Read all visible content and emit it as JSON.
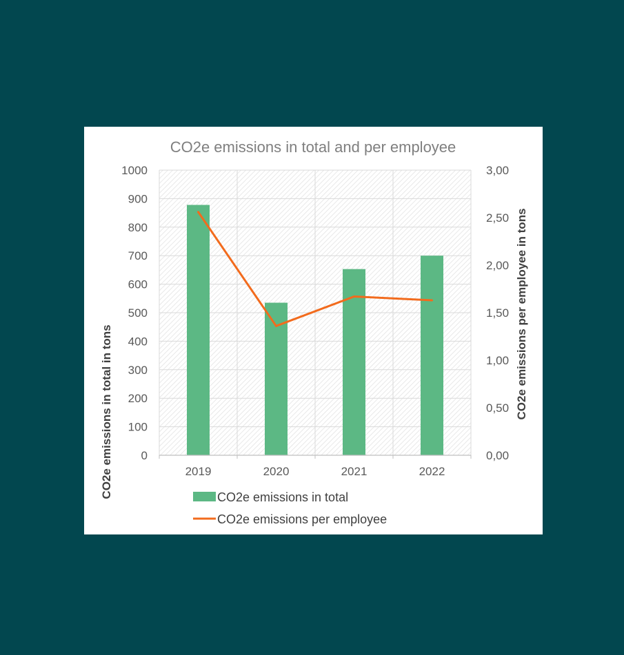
{
  "chart_data": {
    "type": "bar",
    "title": "CO2e emissions in total and per employee",
    "categories": [
      "2019",
      "2020",
      "2021",
      "2022"
    ],
    "series": [
      {
        "name": "CO2e emissions in total",
        "type": "bar",
        "axis": "left",
        "color": "#5cb884",
        "values": [
          878,
          535,
          653,
          700
        ]
      },
      {
        "name": "CO2e emissions per employee",
        "type": "line",
        "axis": "right",
        "color": "#f26b1d",
        "values": [
          2.56,
          1.36,
          1.67,
          1.63
        ]
      }
    ],
    "ylabel": "CO2e emissions in total in tons",
    "y2label": "CO2e emissions per employee in tons",
    "ylim": [
      0,
      1000
    ],
    "y2lim": [
      0,
      3
    ],
    "yticks": [
      "0",
      "100",
      "200",
      "300",
      "400",
      "500",
      "600",
      "700",
      "800",
      "900",
      "1000"
    ],
    "y2ticks": [
      "0,00",
      "0,50",
      "1,00",
      "1,50",
      "2,00",
      "2,50",
      "3,00"
    ],
    "grid": true,
    "legend": "bottom"
  }
}
